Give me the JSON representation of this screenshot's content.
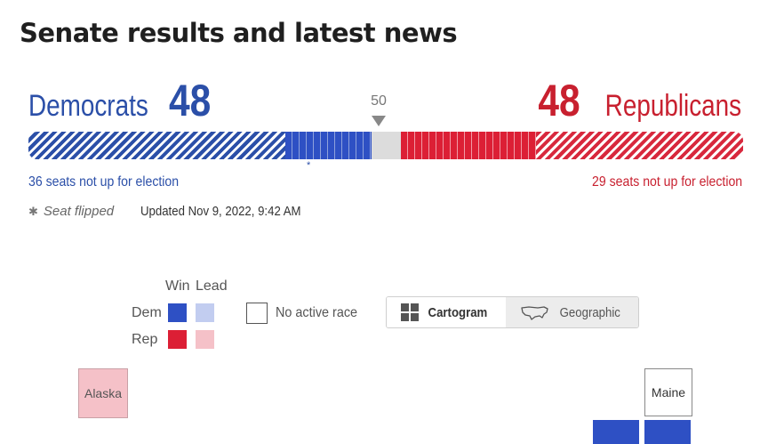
{
  "page": {
    "title": "Senate results and latest news"
  },
  "democrats": {
    "label": "Democrats",
    "seats": "48",
    "not_up": "36 seats not up for election"
  },
  "republicans": {
    "label": "Republicans",
    "seats": "48",
    "not_up": "29 seats not up for election"
  },
  "majority_marker": "50",
  "balance_bar": {
    "dem_not_up": 36,
    "dem_won": 12,
    "undecided": 4,
    "rep_won": 19,
    "rep_not_up": 29,
    "dem_color": "#2e50c4",
    "rep_color": "#dc1f35",
    "undecided_color": "#dcdcdc",
    "flip_marker": "*"
  },
  "status": {
    "seat_flipped": "Seat flipped",
    "flip_icon": "*",
    "updated": "Updated Nov 9, 2022, 9:42 AM"
  },
  "legend": {
    "win": "Win",
    "lead": "Lead",
    "dem": "Dem",
    "rep": "Rep",
    "no_active_race": "No active race",
    "colors": {
      "dem_win": "#2e50c4",
      "dem_lead": "#c2cdf0",
      "rep_win": "#dc1f35",
      "rep_lead": "#f5c1c8"
    }
  },
  "map_toggle": {
    "options": [
      {
        "label": "Cartogram",
        "icon": "grid-icon",
        "selected": true
      },
      {
        "label": "Geographic",
        "icon": "us-map-icon",
        "selected": false
      }
    ]
  },
  "map": {
    "states": [
      {
        "label": "Alaska",
        "status": "rep-lead"
      },
      {
        "label": "Maine",
        "status": "no-active-race"
      }
    ]
  }
}
